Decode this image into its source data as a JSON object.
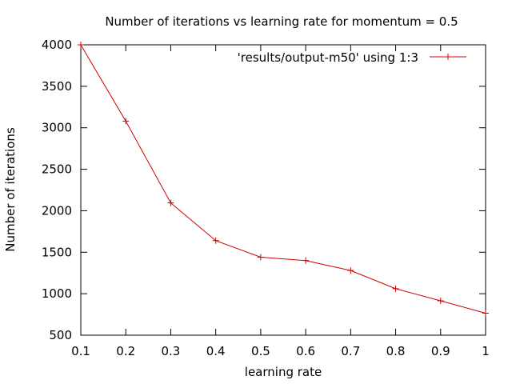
{
  "chart_data": {
    "type": "line",
    "title": "Number of iterations vs learning rate for momentum = 0.5",
    "xlabel": "learning rate",
    "ylabel": "Number of iterations",
    "xlim": [
      0.1,
      1
    ],
    "ylim": [
      500,
      4000
    ],
    "xticks": [
      "0.1",
      "0.2",
      "0.3",
      "0.4",
      "0.5",
      "0.6",
      "0.7",
      "0.8",
      "0.9",
      "1"
    ],
    "yticks": [
      "500",
      "1000",
      "1500",
      "2000",
      "2500",
      "3000",
      "3500",
      "4000"
    ],
    "grid": false,
    "legend_position": "top-right",
    "series": [
      {
        "name": "'results/output-m50' using 1:3",
        "color": "#d00000",
        "marker": "plus",
        "x": [
          0.1,
          0.2,
          0.3,
          0.4,
          0.5,
          0.6,
          0.7,
          0.8,
          0.9,
          1.0
        ],
        "y": [
          4000,
          3080,
          2095,
          1640,
          1440,
          1400,
          1280,
          1060,
          915,
          765
        ]
      }
    ]
  }
}
